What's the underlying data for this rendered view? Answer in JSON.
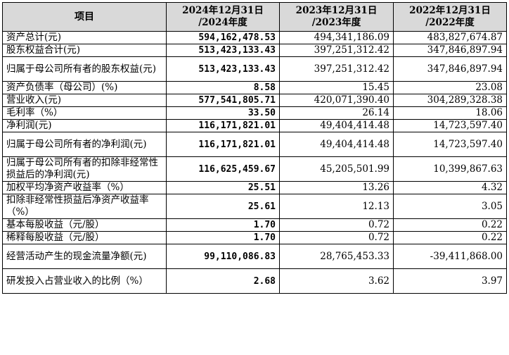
{
  "table": {
    "headers": {
      "item": "项目",
      "y2024": [
        "2024年12月31日",
        "/2024年度"
      ],
      "y2023": [
        "2023年12月31日",
        "/2023年度"
      ],
      "y2022": [
        "2022年12月31日",
        "/2022年度"
      ]
    },
    "rows": [
      {
        "label": "资产总计(元)",
        "v2024": "594,162,478.53",
        "v2023": "494,341,186.09",
        "v2022": "483,827,674.87"
      },
      {
        "label": "股东权益合计(元)",
        "v2024": "513,423,133.43",
        "v2023": "397,251,312.42",
        "v2022": "347,846,897.94"
      },
      {
        "label": "归属于母公司所有者的股东权益(元)",
        "v2024": "513,423,133.43",
        "v2023": "397,251,312.42",
        "v2022": "347,846,897.94"
      },
      {
        "label": "资产负债率（母公司）(%)",
        "v2024": "8.58",
        "v2023": "15.45",
        "v2022": "23.08"
      },
      {
        "label": "营业收入(元)",
        "v2024": "577,541,805.71",
        "v2023": "420,071,390.40",
        "v2022": "304,289,328.38"
      },
      {
        "label": "毛利率（%）",
        "v2024": "33.50",
        "v2023": "26.14",
        "v2022": "18.06"
      },
      {
        "label": "净利润(元)",
        "v2024": "116,171,821.01",
        "v2023": "49,404,414.48",
        "v2022": "14,723,597.40"
      },
      {
        "label": "归属于母公司所有者的净利润(元)",
        "v2024": "116,171,821.01",
        "v2023": "49,404,414.48",
        "v2022": "14,723,597.40"
      },
      {
        "label": "归属于母公司所有者的扣除非经常性损益后的净利润(元)",
        "v2024": "116,625,459.67",
        "v2023": "45,205,501.99",
        "v2022": "10,399,867.63"
      },
      {
        "label": "加权平均净资产收益率（%）",
        "v2024": "25.51",
        "v2023": "13.26",
        "v2022": "4.32"
      },
      {
        "label": "扣除非经常性损益后净资产收益率（%）",
        "v2024": "25.61",
        "v2023": "12.13",
        "v2022": "3.05"
      },
      {
        "label": "基本每股收益（元/股）",
        "v2024": "1.70",
        "v2023": "0.72",
        "v2022": "0.22"
      },
      {
        "label": "稀释每股收益（元/股）",
        "v2024": "1.70",
        "v2023": "0.72",
        "v2022": "0.22"
      },
      {
        "label": "经营活动产生的现金流量净额(元)",
        "v2024": "99,110,086.83",
        "v2023": "28,765,453.33",
        "v2022": "-39,411,868.00"
      },
      {
        "label": "研发投入占营业收入的比例（%）",
        "v2024": "2.68",
        "v2023": "3.62",
        "v2022": "3.97"
      }
    ]
  }
}
